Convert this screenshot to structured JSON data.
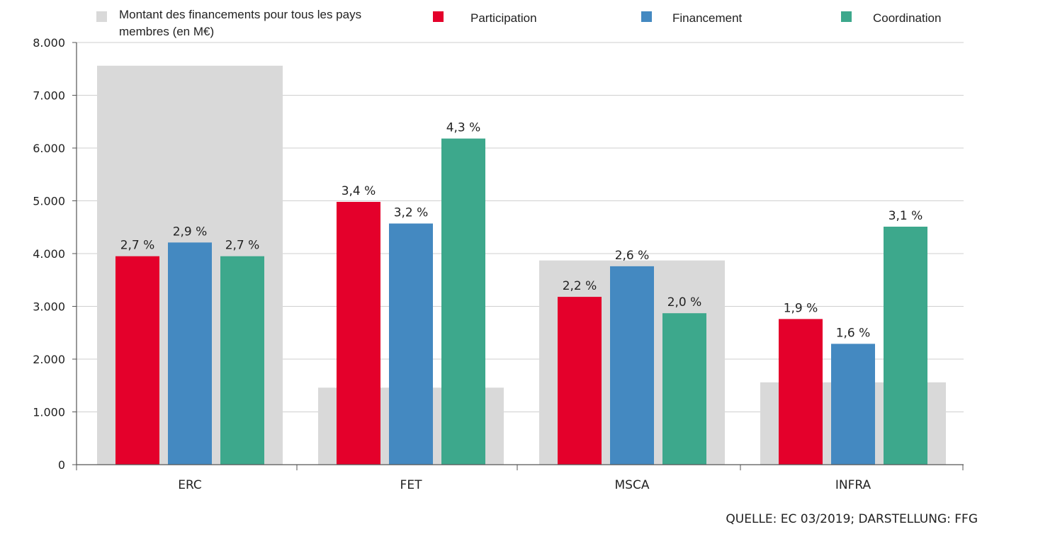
{
  "chart_data": {
    "type": "bar",
    "categories": [
      "ERC",
      "FET",
      "MSCA",
      "INFRA"
    ],
    "ylim": [
      0,
      8000
    ],
    "yticks": [
      0,
      1000,
      2000,
      3000,
      4000,
      5000,
      6000,
      7000,
      8000
    ],
    "ytick_labels": [
      "0",
      "1.000",
      "2.000",
      "3.000",
      "4.000",
      "5.000",
      "6.000",
      "7.000",
      "8.000"
    ],
    "grid": true,
    "legend_position": "top",
    "background_series": {
      "name": "Montant des financements pour tous les pays membres (en M€)",
      "name_lines": [
        "Montant des financements pour tous les pays",
        "membres (en M€)"
      ],
      "color": "#d9d9d9",
      "values": [
        7560,
        1460,
        3870,
        1560
      ]
    },
    "series": [
      {
        "name": "Participation",
        "color": "#e4002b",
        "values": [
          3950,
          4980,
          3180,
          2760
        ],
        "labels": [
          "2,7 %",
          "3,4 %",
          "2,2 %",
          "1,9 %"
        ]
      },
      {
        "name": "Financement",
        "color": "#4489c1",
        "values": [
          4210,
          4570,
          3760,
          2290
        ],
        "labels": [
          "2,9 %",
          "3,2 %",
          "2,6 %",
          "1,6 %"
        ]
      },
      {
        "name": "Coordination",
        "color": "#3da88c",
        "values": [
          3950,
          6180,
          2870,
          4510
        ],
        "labels": [
          "2,7 %",
          "4,3 %",
          "2,0 %",
          "3,1 %"
        ]
      }
    ],
    "source": "QUELLE: EC 03/2019; DARSTELLUNG: FFG"
  }
}
